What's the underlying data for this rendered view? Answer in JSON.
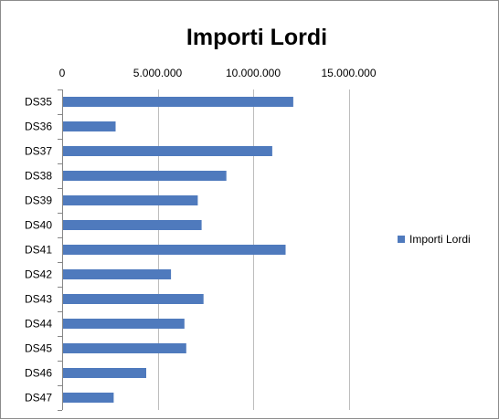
{
  "chart_data": {
    "type": "bar",
    "orientation": "horizontal",
    "title": "Importi Lordi",
    "xlabel": "",
    "ylabel": "",
    "xlim": [
      0,
      20000000
    ],
    "ticks": [
      {
        "value": 0,
        "label": "0"
      },
      {
        "value": 5000000,
        "label": "5.000.000"
      },
      {
        "value": 10000000,
        "label": "10.000.000"
      },
      {
        "value": 15000000,
        "label": "15.000.000"
      }
    ],
    "grid": true,
    "legend_position": "right",
    "color": "#4f7abd",
    "categories": [
      "DS35",
      "DS36",
      "DS37",
      "DS38",
      "DS39",
      "DS40",
      "DS41",
      "DS42",
      "DS43",
      "DS44",
      "DS45",
      "DS46",
      "DS47"
    ],
    "series": [
      {
        "name": "Importi Lordi",
        "values": [
          12100000,
          2800000,
          11000000,
          8600000,
          7100000,
          7300000,
          11700000,
          5700000,
          7400000,
          6400000,
          6500000,
          4400000,
          2700000
        ]
      }
    ]
  }
}
